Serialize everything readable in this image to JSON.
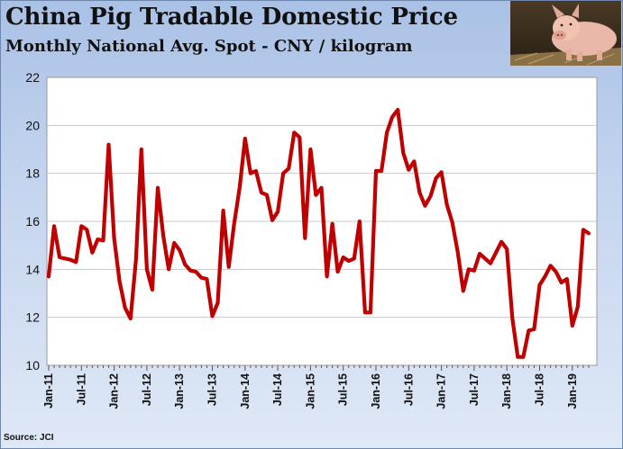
{
  "header": {
    "title": "China Pig Tradable Domestic Price",
    "subtitle": "Monthly National Avg. Spot - CNY / kilogram"
  },
  "photo": {
    "icon": "pig-photo"
  },
  "footer": {
    "source": "Source: JCI"
  },
  "colors": {
    "line": "#c00000",
    "plot_bg": "#ffffff",
    "grid": "#c8c8c8",
    "frame": "#6f86ad"
  },
  "chart_data": {
    "type": "line",
    "title": "China Pig Tradable Domestic Price",
    "subtitle": "Monthly National Avg. Spot - CNY / kilogram",
    "xlabel": "",
    "ylabel": "",
    "ylim": [
      10,
      22
    ],
    "yticks": [
      10,
      12,
      14,
      16,
      18,
      20,
      22
    ],
    "xtick_labels": [
      "Jan-11",
      "Jul-11",
      "Jan-12",
      "Jul-12",
      "Jan-13",
      "Jul-13",
      "Jan-14",
      "Jul-14",
      "Jan-15",
      "Jul-15",
      "Jan-16",
      "Jul-16",
      "Jan-17",
      "Jul-17",
      "Jan-18",
      "Jul-18",
      "Jan-19"
    ],
    "grid": "horizontal",
    "series": [
      {
        "values": [
          13.7,
          15.8,
          14.5,
          14.45,
          14.4,
          14.3,
          15.8,
          15.65,
          14.7,
          15.25,
          15.2,
          19.2,
          15.3,
          13.5,
          12.4,
          11.95,
          14.4,
          19.0,
          14.0,
          13.15,
          17.4,
          15.4,
          14.0,
          15.1,
          14.8,
          14.2,
          13.95,
          13.9,
          13.65,
          13.6,
          12.05,
          12.6,
          16.45,
          14.1,
          15.9,
          17.4,
          19.45,
          18.0,
          18.1,
          17.2,
          17.1,
          16.05,
          16.4,
          18.0,
          18.2,
          19.7,
          19.5,
          15.3,
          19.0,
          17.1,
          17.4,
          13.7,
          15.9,
          13.9,
          14.5,
          14.35,
          14.45,
          16.0,
          12.2,
          12.2,
          18.1,
          18.1,
          19.7,
          20.35,
          20.65,
          18.85,
          18.15,
          18.5,
          17.2,
          16.65,
          17.05,
          17.8,
          18.05,
          16.7,
          15.95,
          14.7,
          13.1,
          14.0,
          13.95,
          14.65,
          14.45,
          14.25,
          14.7,
          15.15,
          14.85,
          11.95,
          10.35,
          10.35,
          11.45,
          11.5,
          13.35,
          13.7,
          14.15,
          13.9,
          13.45,
          13.6,
          11.65,
          12.45,
          15.65,
          15.5
        ]
      }
    ]
  }
}
